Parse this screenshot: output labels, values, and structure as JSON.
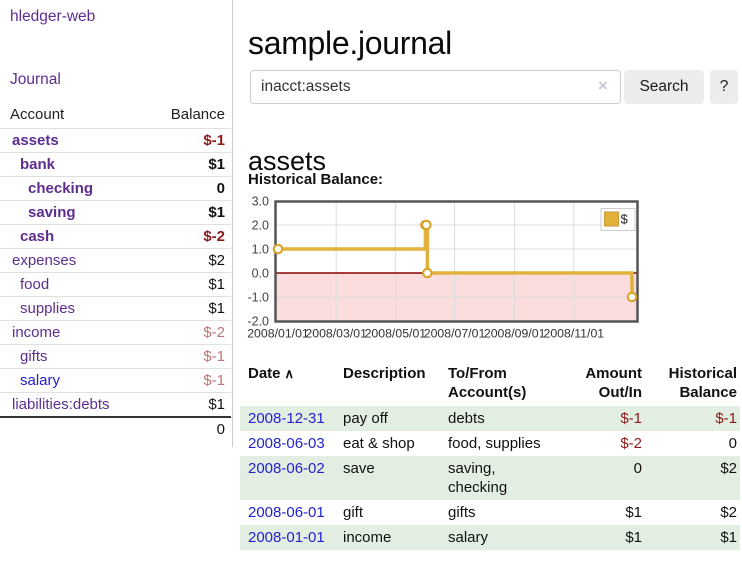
{
  "sidebar": {
    "brand": "hledger-web",
    "nav": {
      "journal": "Journal"
    },
    "accounts_table": {
      "headers": {
        "account": "Account",
        "balance": "Balance"
      },
      "rows": [
        {
          "name": "assets",
          "level": 1,
          "bold": true,
          "balance": "$-1",
          "neg": "strong"
        },
        {
          "name": "bank",
          "level": 2,
          "bold": true,
          "balance": "$1"
        },
        {
          "name": "checking",
          "level": 3,
          "bold": true,
          "balance": "0"
        },
        {
          "name": "saving",
          "level": 3,
          "bold": true,
          "balance": "$1"
        },
        {
          "name": "cash",
          "level": 2,
          "bold": true,
          "balance": "$-2",
          "neg": "strong"
        },
        {
          "name": "expenses",
          "level": 1,
          "bold": false,
          "balance": "$2"
        },
        {
          "name": "food",
          "level": 2,
          "bold": false,
          "balance": "$1"
        },
        {
          "name": "supplies",
          "level": 2,
          "bold": false,
          "balance": "$1"
        },
        {
          "name": "income",
          "level": 1,
          "bold": false,
          "balance": "$-2",
          "neg": "soft"
        },
        {
          "name": "gifts",
          "level": 2,
          "bold": false,
          "balance": "$-1",
          "neg": "soft"
        },
        {
          "name": "salary",
          "level": 2,
          "bold": false,
          "balance": "$-1",
          "neg": "soft",
          "link_color": "blue"
        },
        {
          "name": "liabilities:debts",
          "level": 1,
          "bold": false,
          "balance": "$1"
        }
      ],
      "total": "0"
    }
  },
  "main": {
    "title": "sample.journal",
    "search": {
      "value": "inacct:assets",
      "button": "Search",
      "help_button": "?"
    },
    "account_heading": "assets",
    "chart_label": "Historical Balance:",
    "register": {
      "headers": {
        "date": "Date",
        "description": "Description",
        "accounts_l1": "To/From",
        "accounts_l2": "Account(s)",
        "amount_l1": "Amount",
        "amount_l2": "Out/In",
        "balance_l1": "Historical",
        "balance_l2": "Balance"
      },
      "rows": [
        {
          "date": "2008-12-31",
          "description": "pay off",
          "accounts": "debts",
          "amount": "$-1",
          "amount_neg": true,
          "balance": "$-1",
          "balance_neg": true
        },
        {
          "date": "2008-06-03",
          "description": "eat & shop",
          "accounts": "food, supplies",
          "amount": "$-2",
          "amount_neg": true,
          "balance": "0",
          "balance_neg": false
        },
        {
          "date": "2008-06-02",
          "description": "save",
          "accounts": "saving, checking",
          "amount": "0",
          "amount_neg": false,
          "balance": "$2",
          "balance_neg": false
        },
        {
          "date": "2008-06-01",
          "description": "gift",
          "accounts": "gifts",
          "amount": "$1",
          "amount_neg": false,
          "balance": "$2",
          "balance_neg": false
        },
        {
          "date": "2008-01-01",
          "description": "income",
          "accounts": "salary",
          "amount": "$1",
          "amount_neg": false,
          "balance": "$1",
          "balance_neg": false
        }
      ]
    }
  },
  "icons": {
    "sort_asc": "∧",
    "clear": "×"
  },
  "chart_data": {
    "type": "line",
    "step": true,
    "title": "Historical Balance:",
    "legend_label": "$",
    "legend_position": "top-right",
    "grid": true,
    "x_range": [
      "2008-01-01",
      "2008-12-31"
    ],
    "ylim": [
      -2.0,
      3.0
    ],
    "y_ticks": [
      3.0,
      2.0,
      1.0,
      0.0,
      -1.0,
      -2.0
    ],
    "x_ticks": [
      "2008/01/01",
      "2008/03/01",
      "2008/05/01",
      "2008/07/01",
      "2008/09/01",
      "2008/11/01"
    ],
    "series": [
      {
        "name": "$",
        "points": [
          [
            "2008-01-01",
            1
          ],
          [
            "2008-06-01",
            2
          ],
          [
            "2008-06-02",
            2
          ],
          [
            "2008-06-03",
            0
          ],
          [
            "2008-12-31",
            -1
          ]
        ]
      }
    ],
    "colors": {
      "line": "#e2b13c",
      "marker_stroke": "#d9a62d",
      "marker_fill": "#ffffff",
      "negative_fill": "#fbdddd",
      "zero_line": "#8b0000",
      "grid": "#dddddd",
      "border": "#555555"
    }
  },
  "colors": {
    "link_purple": "#5e2d91",
    "link_blue": "#2222cc",
    "negative_strong": "#8b1a1a",
    "negative_soft": "#bd7575",
    "row_stripe_green": "#e3eee3",
    "button_gray": "#ececec"
  }
}
